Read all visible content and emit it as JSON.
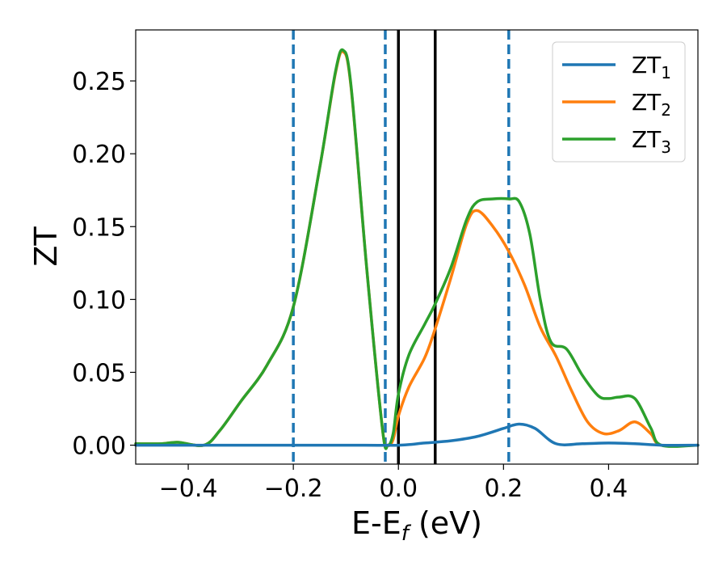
{
  "chart_data": {
    "type": "line",
    "xlabel": "E-E",
    "xlabel_sub": "f",
    "xlabel_unit": " (eV)",
    "ylabel": "ZT",
    "xlim": [
      -0.5,
      0.57
    ],
    "ylim": [
      -0.013,
      0.285
    ],
    "xticks": [
      -0.4,
      -0.2,
      0.0,
      0.2,
      0.4
    ],
    "xtick_labels": [
      "−0.4",
      "−0.2",
      "0.0",
      "0.2",
      "0.4"
    ],
    "yticks": [
      0.0,
      0.05,
      0.1,
      0.15,
      0.2,
      0.25
    ],
    "ytick_labels": [
      "0.00",
      "0.05",
      "0.10",
      "0.15",
      "0.20",
      "0.25"
    ],
    "grid": false,
    "legend_position": "top-right",
    "vlines_dashed": [
      -0.2,
      -0.025,
      0.21
    ],
    "vlines_solid": [
      0.0,
      0.07
    ],
    "series": [
      {
        "name": "ZT",
        "name_sub": "1",
        "color": "#1f77b4",
        "x": [
          -0.5,
          -0.4,
          -0.3,
          -0.2,
          -0.1,
          0.0,
          0.05,
          0.1,
          0.15,
          0.2,
          0.23,
          0.26,
          0.3,
          0.35,
          0.4,
          0.45,
          0.5,
          0.57
        ],
        "y": [
          0.0,
          0.0,
          0.0,
          0.0,
          0.0,
          0.0,
          0.0015,
          0.003,
          0.006,
          0.0115,
          0.0145,
          0.0115,
          0.001,
          0.001,
          0.0015,
          0.001,
          0.0,
          0.0
        ]
      },
      {
        "name": "ZT",
        "name_sub": "2",
        "color": "#ff7f0e",
        "x": [
          -0.5,
          -0.45,
          -0.42,
          -0.37,
          -0.34,
          -0.3,
          -0.25,
          -0.2,
          -0.15,
          -0.12,
          -0.105,
          -0.09,
          -0.06,
          -0.03,
          -0.02,
          -0.01,
          0.0,
          0.02,
          0.05,
          0.07,
          0.1,
          0.13,
          0.15,
          0.18,
          0.21,
          0.24,
          0.27,
          0.3,
          0.33,
          0.36,
          0.39,
          0.42,
          0.45,
          0.48,
          0.5,
          0.57
        ],
        "y": [
          0.001,
          0.001,
          0.002,
          0.0,
          0.01,
          0.03,
          0.055,
          0.095,
          0.19,
          0.255,
          0.27,
          0.245,
          0.12,
          0.01,
          0.0,
          0.004,
          0.02,
          0.04,
          0.06,
          0.08,
          0.115,
          0.152,
          0.161,
          0.15,
          0.133,
          0.11,
          0.081,
          0.061,
          0.037,
          0.016,
          0.008,
          0.01,
          0.016,
          0.008,
          0.0,
          0.0
        ]
      },
      {
        "name": "ZT",
        "name_sub": "3",
        "color": "#2ca02c",
        "x": [
          -0.5,
          -0.45,
          -0.42,
          -0.37,
          -0.34,
          -0.3,
          -0.25,
          -0.2,
          -0.15,
          -0.12,
          -0.105,
          -0.09,
          -0.06,
          -0.03,
          -0.02,
          -0.01,
          0.0,
          0.02,
          0.05,
          0.07,
          0.1,
          0.13,
          0.15,
          0.18,
          0.21,
          0.23,
          0.25,
          0.27,
          0.29,
          0.32,
          0.35,
          0.38,
          0.4,
          0.42,
          0.45,
          0.48,
          0.5,
          0.57
        ],
        "y": [
          0.001,
          0.001,
          0.002,
          0.0,
          0.01,
          0.03,
          0.055,
          0.095,
          0.19,
          0.256,
          0.271,
          0.246,
          0.12,
          0.01,
          0.0,
          0.008,
          0.035,
          0.062,
          0.083,
          0.097,
          0.122,
          0.155,
          0.167,
          0.169,
          0.169,
          0.167,
          0.145,
          0.1,
          0.071,
          0.066,
          0.048,
          0.034,
          0.032,
          0.033,
          0.032,
          0.012,
          0.0,
          0.0
        ]
      }
    ]
  }
}
